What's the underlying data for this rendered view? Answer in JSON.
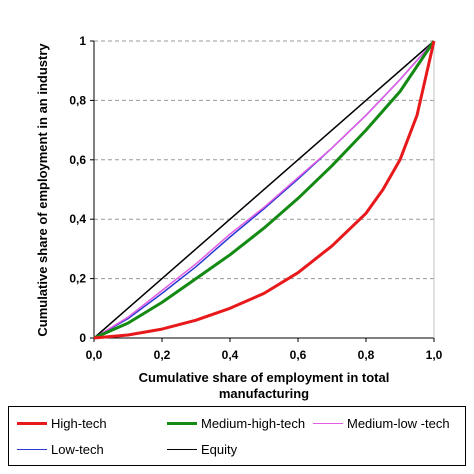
{
  "chart_data": {
    "type": "line",
    "xlabel": "Cumulative share of employment in total manufacturing",
    "ylabel": "Cumulative share of employment in an industry",
    "xlim": [
      0,
      1
    ],
    "ylim": [
      0,
      1
    ],
    "x_ticks": [
      "0,0",
      "0,2",
      "0,4",
      "0,6",
      "0,8",
      "1,0"
    ],
    "y_ticks": [
      "0",
      "0,2",
      "0,4",
      "0,6",
      "0,8",
      "1"
    ],
    "grid": "horizontal dashed",
    "legend_position": "bottom",
    "series": [
      {
        "name": "High-tech",
        "color": "#e8191b",
        "x": [
          0,
          0.1,
          0.2,
          0.3,
          0.4,
          0.5,
          0.6,
          0.7,
          0.8,
          0.85,
          0.9,
          0.95,
          1.0
        ],
        "y": [
          0,
          0.01,
          0.03,
          0.06,
          0.1,
          0.15,
          0.22,
          0.31,
          0.42,
          0.5,
          0.6,
          0.75,
          1.0
        ]
      },
      {
        "name": "Medium-high-tech",
        "color": "#138a13",
        "x": [
          0,
          0.1,
          0.2,
          0.3,
          0.4,
          0.5,
          0.6,
          0.7,
          0.8,
          0.9,
          1.0
        ],
        "y": [
          0,
          0.05,
          0.12,
          0.2,
          0.28,
          0.37,
          0.47,
          0.58,
          0.7,
          0.83,
          1.0
        ]
      },
      {
        "name": "Medium-low -tech",
        "color": "#e25ce6",
        "x": [
          0,
          0.1,
          0.2,
          0.3,
          0.4,
          0.5,
          0.6,
          0.7,
          0.8,
          0.9,
          1.0
        ],
        "y": [
          0,
          0.07,
          0.16,
          0.25,
          0.35,
          0.44,
          0.54,
          0.64,
          0.75,
          0.87,
          1.0
        ]
      },
      {
        "name": "Low-tech",
        "color": "#2b3bd1",
        "x": [
          0,
          0.1,
          0.2,
          0.3,
          0.4,
          0.5,
          0.6,
          0.7,
          0.8,
          0.9,
          1.0
        ],
        "y": [
          0,
          0.065,
          0.15,
          0.24,
          0.34,
          0.435,
          0.535,
          0.64,
          0.75,
          0.87,
          1.0
        ]
      },
      {
        "name": "Equity",
        "color": "#000000",
        "x": [
          0,
          1
        ],
        "y": [
          0,
          1
        ]
      }
    ]
  }
}
